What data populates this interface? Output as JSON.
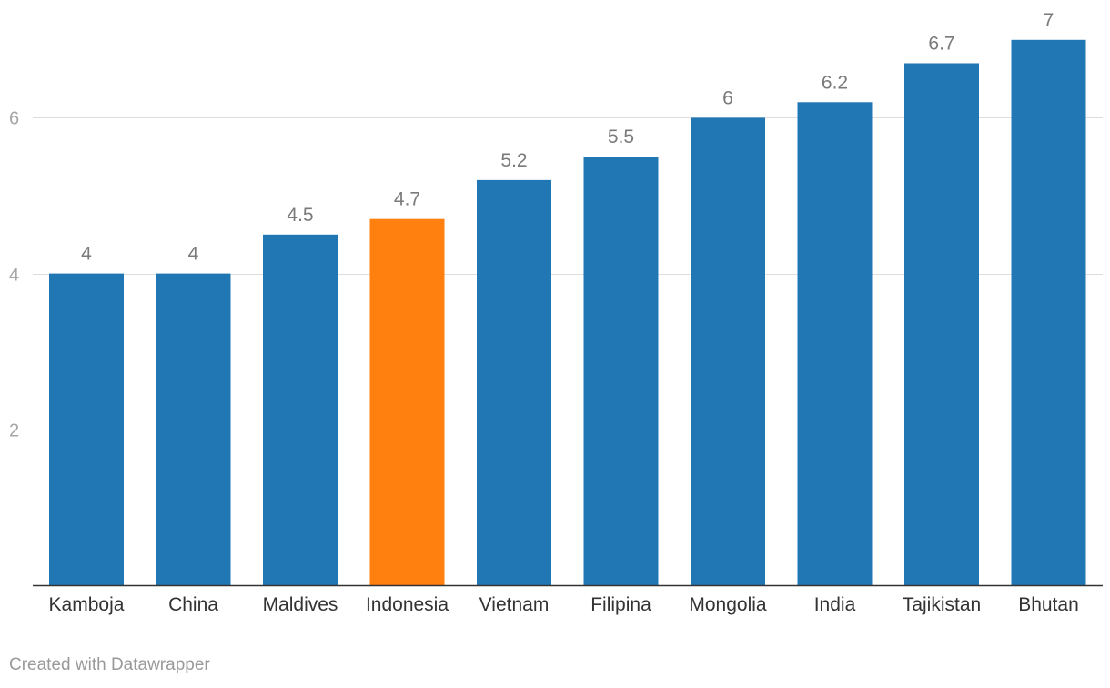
{
  "chart_data": {
    "type": "bar",
    "categories": [
      "Kamboja",
      "China",
      "Maldives",
      "Indonesia",
      "Vietnam",
      "Filipina",
      "Mongolia",
      "India",
      "Tajikistan",
      "Bhutan"
    ],
    "values": [
      4,
      4,
      4.5,
      4.7,
      5.2,
      5.5,
      6,
      6.2,
      6.7,
      7
    ],
    "value_labels": [
      "4",
      "4",
      "4.5",
      "4.7",
      "5.2",
      "5.5",
      "6",
      "6.2",
      "6.7",
      "7"
    ],
    "highlight_category": "Indonesia",
    "yticks": [
      2,
      4,
      6
    ],
    "ylim": [
      0,
      7.5
    ],
    "grid": true,
    "legend": "none",
    "title": "",
    "xlabel": "",
    "ylabel": ""
  },
  "colors": {
    "bar": "#2077b4",
    "highlight": "#ff800e"
  },
  "footer": {
    "credit": "Created with Datawrapper"
  }
}
